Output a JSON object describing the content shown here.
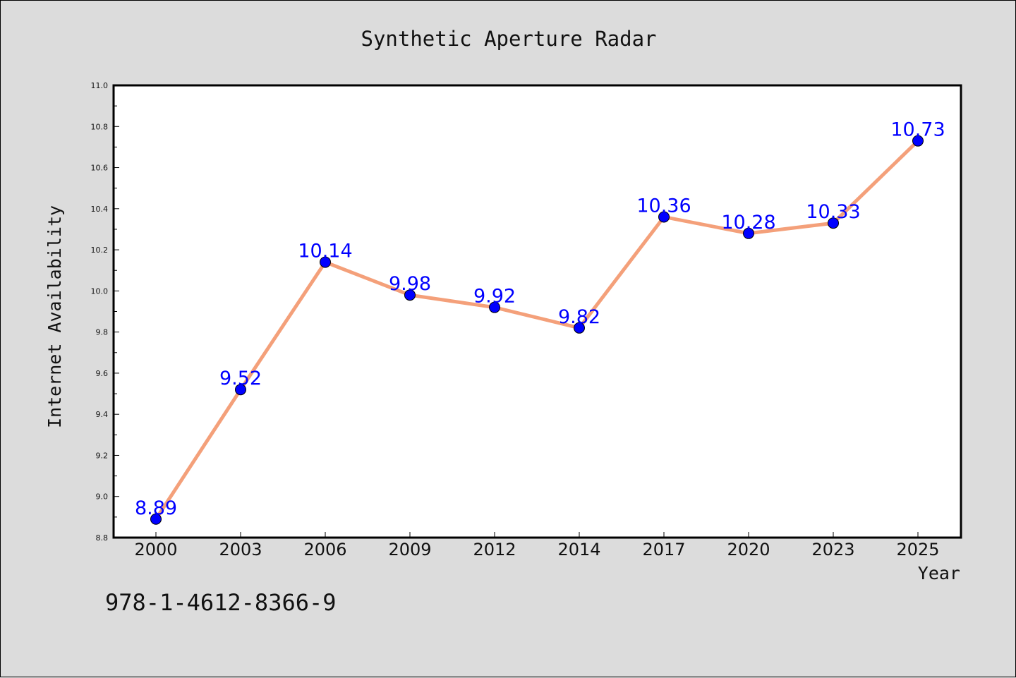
{
  "chart_data": {
    "type": "line",
    "title": "Synthetic Aperture Radar",
    "xlabel": "Year",
    "ylabel": "Internet Availability",
    "categories": [
      "2000",
      "2003",
      "2006",
      "2009",
      "2012",
      "2014",
      "2017",
      "2020",
      "2023",
      "2025"
    ],
    "series": [
      {
        "values": [
          8.89,
          9.52,
          10.14,
          9.98,
          9.92,
          9.82,
          10.36,
          10.28,
          10.33,
          10.73
        ]
      }
    ],
    "data_labels": [
      "8.89",
      "9.52",
      "10.14",
      "9.98",
      "9.92",
      "9.82",
      "10.36",
      "10.28",
      "10.33",
      "10.73"
    ],
    "y_ticks": [
      "8.8",
      "9.0",
      "9.2",
      "9.4",
      "9.6",
      "9.8",
      "10.0",
      "10.2",
      "10.4",
      "10.6",
      "10.8",
      "11.0"
    ],
    "ylim": [
      8.8,
      11.0
    ],
    "grid": false,
    "legend": "none",
    "colors": {
      "line": "#f4a07a",
      "marker": "#0000ff",
      "label": "#0000ff",
      "background": "#dcdcdc",
      "plot_area": "#ffffff"
    }
  },
  "footer": {
    "isbn": "978-1-4612-8366-9"
  }
}
